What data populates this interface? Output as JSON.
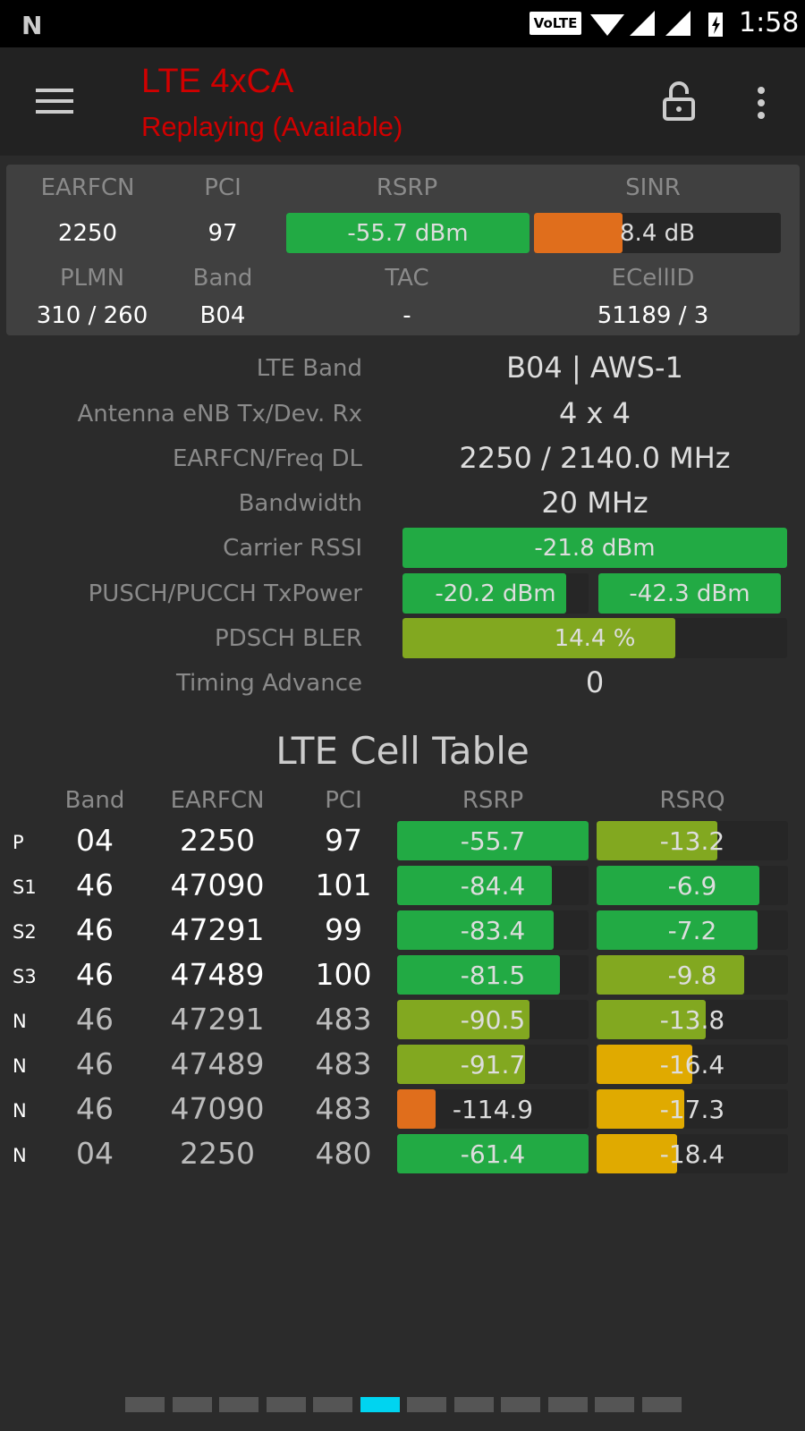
{
  "status_bar": {
    "time": "1:58",
    "volte": "VoLTE",
    "icons": [
      "n-notification-icon",
      "volte-icon",
      "wifi-icon",
      "signal-icon",
      "signal-icon",
      "battery-charging-icon"
    ]
  },
  "toolbar": {
    "title": "LTE 4xCA",
    "subtitle": "Replaying (Available)",
    "title_color": "#d00000",
    "icons": [
      "menu-icon",
      "unlock-icon",
      "more-vert-icon"
    ]
  },
  "summary": {
    "labels": {
      "earfcn": "EARFCN",
      "pci": "PCI",
      "rsrp": "RSRP",
      "sinr": "SINR",
      "plmn": "PLMN",
      "band": "Band",
      "tac": "TAC",
      "ecellid": "ECellID"
    },
    "earfcn": "2250",
    "pci": "97",
    "rsrp": "-55.7 dBm",
    "rsrp_level": 1.0,
    "rsrp_color": "#22aa44",
    "sinr": "8.4 dB",
    "sinr_level": 0.36,
    "sinr_color": "#e06e1c",
    "plmn": "310 / 260",
    "band": "B04",
    "tac": "-",
    "ecellid": "51189 / 3"
  },
  "details": {
    "lte_band": {
      "label": "LTE Band",
      "value": "B04 | AWS-1"
    },
    "antenna": {
      "label": "Antenna eNB Tx/Dev. Rx",
      "value": "4 x 4"
    },
    "earfcn_freq": {
      "label": "EARFCN/Freq DL",
      "value": "2250 / 2140.0 MHz"
    },
    "bandwidth": {
      "label": "Bandwidth",
      "value": "20 MHz"
    },
    "rssi": {
      "label": "Carrier RSSI",
      "value": "-21.8 dBm",
      "level": 1.0,
      "color": "#22aa44"
    },
    "txpower": {
      "label": "PUSCH/PUCCH TxPower",
      "pusch": "-20.2 dBm",
      "pusch_level": 0.88,
      "pucch": "-42.3 dBm",
      "pucch_level": 1.0,
      "color": "#22aa44"
    },
    "bler": {
      "label": "PDSCH BLER",
      "value": "14.4 %",
      "level": 0.71,
      "color": "#82a820"
    },
    "timing_advance": {
      "label": "Timing Advance",
      "value": "0"
    }
  },
  "cell_table": {
    "title": "LTE Cell Table",
    "headers": [
      "Band",
      "EARFCN",
      "PCI",
      "RSRP",
      "RSRQ"
    ],
    "rows": [
      {
        "type": "P",
        "band": "04",
        "earfcn": "2250",
        "pci": "97",
        "rsrp": "-55.7",
        "rsrp_level": 1.0,
        "rsrp_color": "#22aa44",
        "rsrq": "-13.2",
        "rsrq_level": 0.63,
        "rsrq_color": "#82a820",
        "serving": true
      },
      {
        "type": "S1",
        "band": "46",
        "earfcn": "47090",
        "pci": "101",
        "rsrp": "-84.4",
        "rsrp_level": 0.81,
        "rsrp_color": "#22aa44",
        "rsrq": "-6.9",
        "rsrq_level": 0.85,
        "rsrq_color": "#22aa44",
        "serving": true
      },
      {
        "type": "S2",
        "band": "46",
        "earfcn": "47291",
        "pci": "99",
        "rsrp": "-83.4",
        "rsrp_level": 0.82,
        "rsrp_color": "#22aa44",
        "rsrq": "-7.2",
        "rsrq_level": 0.84,
        "rsrq_color": "#22aa44",
        "serving": true
      },
      {
        "type": "S3",
        "band": "46",
        "earfcn": "47489",
        "pci": "100",
        "rsrp": "-81.5",
        "rsrp_level": 0.85,
        "rsrp_color": "#22aa44",
        "rsrq": "-9.8",
        "rsrq_level": 0.77,
        "rsrq_color": "#82a820",
        "serving": true
      },
      {
        "type": "N",
        "band": "46",
        "earfcn": "47291",
        "pci": "483",
        "rsrp": "-90.5",
        "rsrp_level": 0.69,
        "rsrp_color": "#82a820",
        "rsrq": "-13.8",
        "rsrq_level": 0.57,
        "rsrq_color": "#82a820",
        "serving": false
      },
      {
        "type": "N",
        "band": "46",
        "earfcn": "47489",
        "pci": "483",
        "rsrp": "-91.7",
        "rsrp_level": 0.67,
        "rsrp_color": "#82a820",
        "rsrq": "-16.4",
        "rsrq_level": 0.5,
        "rsrq_color": "#e0aa00",
        "serving": false
      },
      {
        "type": "N",
        "band": "46",
        "earfcn": "47090",
        "pci": "483",
        "rsrp": "-114.9",
        "rsrp_level": 0.2,
        "rsrp_color": "#e06e1c",
        "rsrq": "-17.3",
        "rsrq_level": 0.46,
        "rsrq_color": "#e0aa00",
        "serving": false
      },
      {
        "type": "N",
        "band": "04",
        "earfcn": "2250",
        "pci": "480",
        "rsrp": "-61.4",
        "rsrp_level": 1.0,
        "rsrp_color": "#22aa44",
        "rsrq": "-18.4",
        "rsrq_level": 0.42,
        "rsrq_color": "#e0aa00",
        "serving": false
      }
    ]
  },
  "pager": {
    "count": 12,
    "active": 6,
    "active_color": "#00d4f0"
  }
}
